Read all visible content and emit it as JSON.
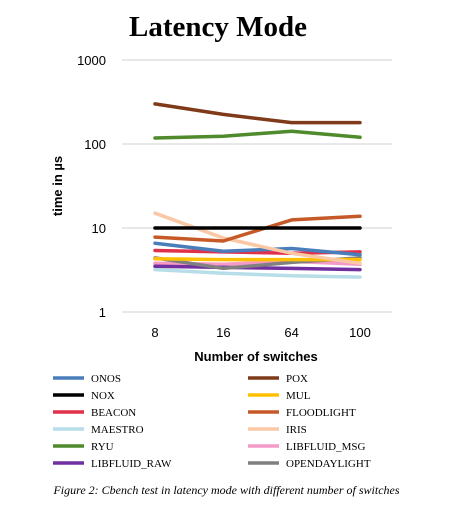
{
  "chart_data": {
    "type": "line",
    "title": "Latency Mode",
    "xlabel": "Number of switches",
    "ylabel": "time in µs",
    "y_scale": "log",
    "ylim": [
      1,
      1000
    ],
    "y_ticks": [
      "1",
      "10",
      "100",
      "1000"
    ],
    "categories": [
      "8",
      "16",
      "64",
      "100"
    ],
    "grid": "horizontal",
    "legend_placement": "bottom",
    "series": [
      {
        "name": "ONOS",
        "color": "#4a7ebb",
        "values": [
          6.6,
          5.3,
          5.7,
          4.8
        ]
      },
      {
        "name": "POX",
        "color": "#7f3a1a",
        "values": [
          300,
          225,
          180,
          180
        ]
      },
      {
        "name": "NOX",
        "color": "#000000",
        "values": [
          10,
          10,
          10,
          10
        ]
      },
      {
        "name": "MUL",
        "color": "#ffc000",
        "values": [
          4.3,
          4.2,
          4.2,
          4.2
        ]
      },
      {
        "name": "BEACON",
        "color": "#e0304a",
        "values": [
          5.4,
          5.2,
          5.0,
          5.2
        ]
      },
      {
        "name": "FLOODLIGHT",
        "color": "#c55a28",
        "values": [
          7.8,
          7.0,
          12.5,
          13.8
        ]
      },
      {
        "name": "MAESTRO",
        "color": "#b7dee8",
        "values": [
          3.2,
          2.9,
          2.7,
          2.6
        ]
      },
      {
        "name": "IRIS",
        "color": "#fac8a5",
        "values": [
          15,
          7.6,
          5.0,
          3.8
        ]
      },
      {
        "name": "RYU",
        "color": "#4f8a2c",
        "values": [
          118,
          124,
          142,
          120
        ]
      },
      {
        "name": "LIBFLUID_MSG",
        "color": "#f49ac8",
        "values": [
          3.8,
          3.7,
          4.0,
          3.7
        ]
      },
      {
        "name": "LIBFLUID_RAW",
        "color": "#7030a0",
        "values": [
          3.5,
          3.4,
          3.3,
          3.2
        ]
      },
      {
        "name": "OPENDAYLIGHT",
        "color": "#808080",
        "values": [
          4.4,
          3.3,
          3.9,
          4.4
        ]
      }
    ]
  },
  "caption": "Figure 2: Cbench test in latency mode with different number of switches"
}
